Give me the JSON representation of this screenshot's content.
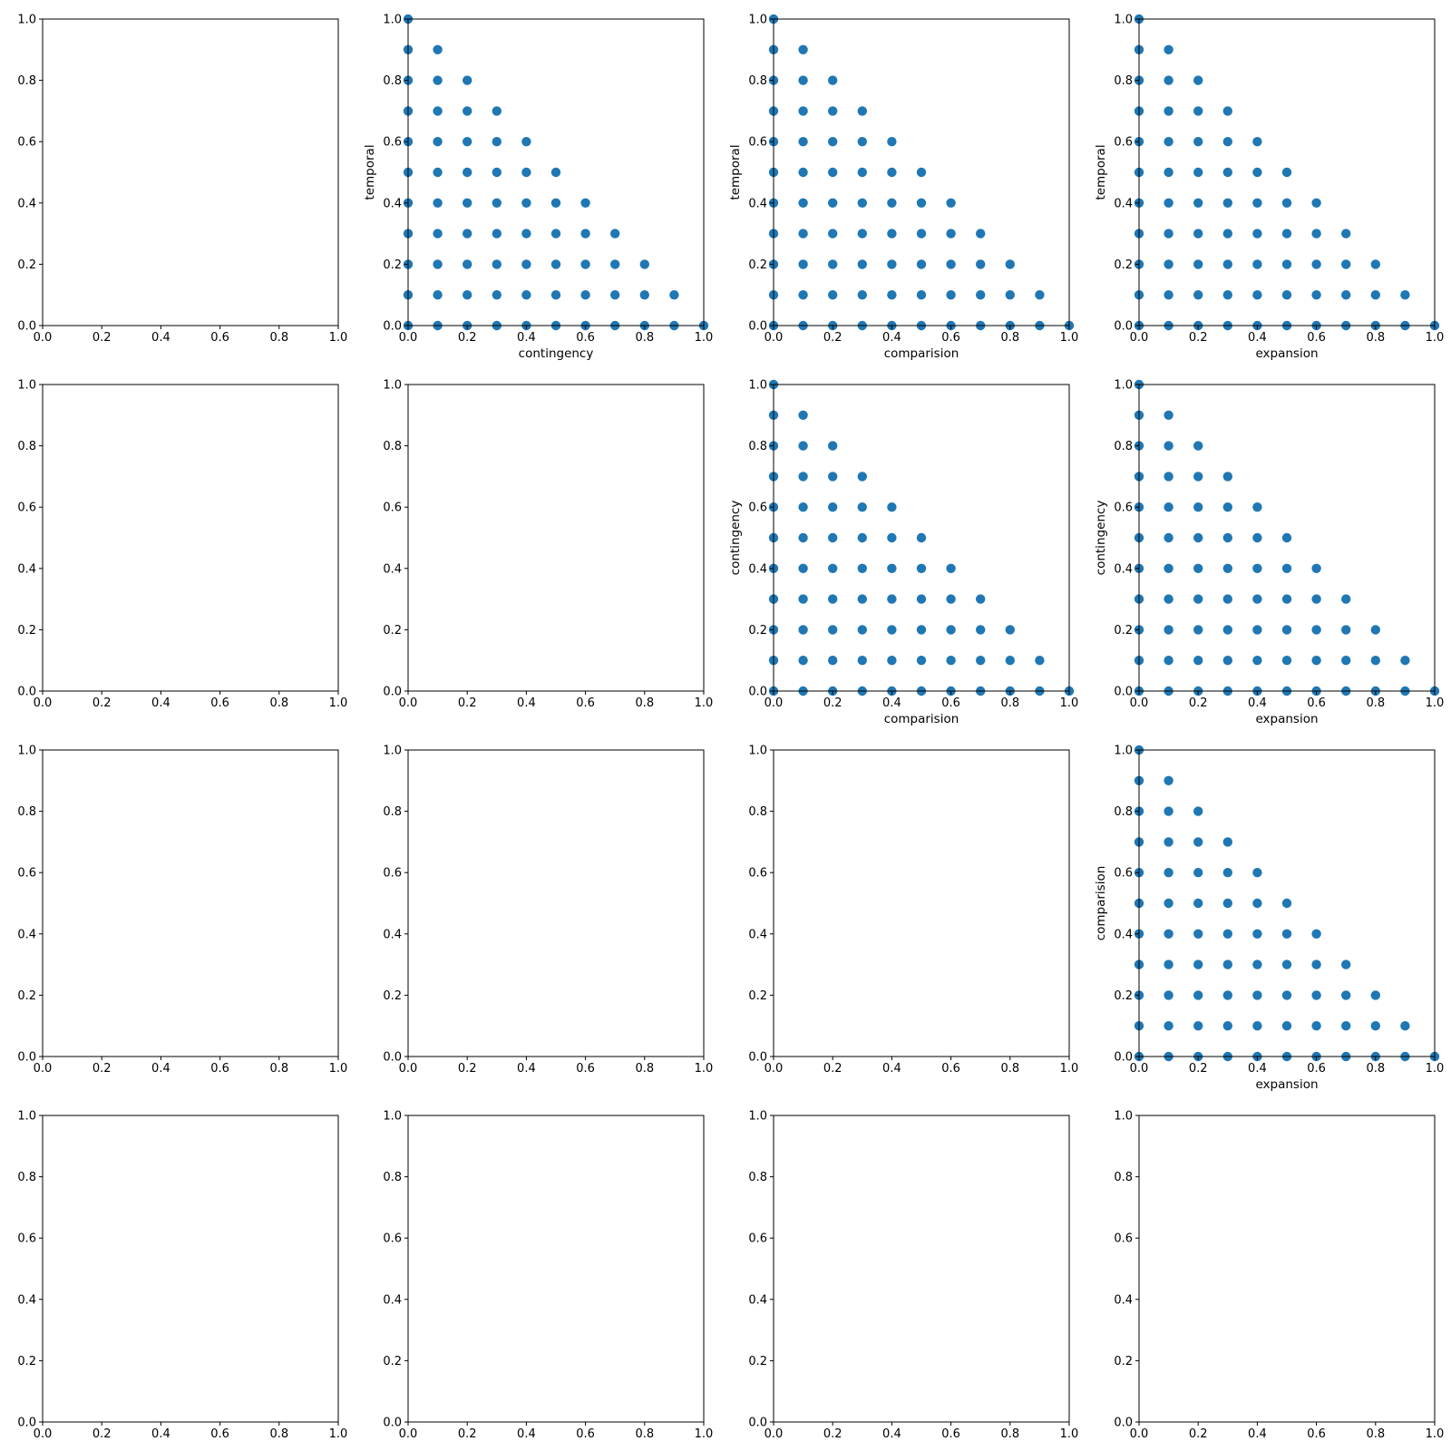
{
  "chart_data": [
    {
      "type": "scatter",
      "row": 0,
      "col": 0,
      "xlabel": "",
      "ylabel": "",
      "xlim": [
        0,
        1
      ],
      "ylim": [
        0,
        1
      ],
      "empty": true
    },
    {
      "type": "scatter",
      "row": 0,
      "col": 1,
      "xlabel": "contingency",
      "ylabel": "temporal",
      "xlim": [
        0,
        1
      ],
      "ylim": [
        0,
        1
      ],
      "points": "triangle"
    },
    {
      "type": "scatter",
      "row": 0,
      "col": 2,
      "xlabel": "comparision",
      "ylabel": "temporal",
      "xlim": [
        0,
        1
      ],
      "ylim": [
        0,
        1
      ],
      "points": "triangle"
    },
    {
      "type": "scatter",
      "row": 0,
      "col": 3,
      "xlabel": "expansion",
      "ylabel": "temporal",
      "xlim": [
        0,
        1
      ],
      "ylim": [
        0,
        1
      ],
      "points": "triangle"
    },
    {
      "type": "scatter",
      "row": 1,
      "col": 0,
      "xlabel": "",
      "ylabel": "",
      "xlim": [
        0,
        1
      ],
      "ylim": [
        0,
        1
      ],
      "empty": true
    },
    {
      "type": "scatter",
      "row": 1,
      "col": 1,
      "xlabel": "",
      "ylabel": "",
      "xlim": [
        0,
        1
      ],
      "ylim": [
        0,
        1
      ],
      "empty": true
    },
    {
      "type": "scatter",
      "row": 1,
      "col": 2,
      "xlabel": "comparision",
      "ylabel": "contingency",
      "xlim": [
        0,
        1
      ],
      "ylim": [
        0,
        1
      ],
      "points": "triangle"
    },
    {
      "type": "scatter",
      "row": 1,
      "col": 3,
      "xlabel": "expansion",
      "ylabel": "contingency",
      "xlim": [
        0,
        1
      ],
      "ylim": [
        0,
        1
      ],
      "points": "triangle"
    },
    {
      "type": "scatter",
      "row": 2,
      "col": 0,
      "xlabel": "",
      "ylabel": "",
      "xlim": [
        0,
        1
      ],
      "ylim": [
        0,
        1
      ],
      "empty": true
    },
    {
      "type": "scatter",
      "row": 2,
      "col": 1,
      "xlabel": "",
      "ylabel": "",
      "xlim": [
        0,
        1
      ],
      "ylim": [
        0,
        1
      ],
      "empty": true
    },
    {
      "type": "scatter",
      "row": 2,
      "col": 2,
      "xlabel": "",
      "ylabel": "",
      "xlim": [
        0,
        1
      ],
      "ylim": [
        0,
        1
      ],
      "empty": true
    },
    {
      "type": "scatter",
      "row": 2,
      "col": 3,
      "xlabel": "expansion",
      "ylabel": "comparision",
      "xlim": [
        0,
        1
      ],
      "ylim": [
        0,
        1
      ],
      "points": "triangle"
    },
    {
      "type": "scatter",
      "row": 3,
      "col": 0,
      "xlabel": "",
      "ylabel": "",
      "xlim": [
        0,
        1
      ],
      "ylim": [
        0,
        1
      ],
      "empty": true
    },
    {
      "type": "scatter",
      "row": 3,
      "col": 1,
      "xlabel": "",
      "ylabel": "",
      "xlim": [
        0,
        1
      ],
      "ylim": [
        0,
        1
      ],
      "empty": true
    },
    {
      "type": "scatter",
      "row": 3,
      "col": 2,
      "xlabel": "",
      "ylabel": "",
      "xlim": [
        0,
        1
      ],
      "ylim": [
        0,
        1
      ],
      "empty": true
    },
    {
      "type": "scatter",
      "row": 3,
      "col": 3,
      "xlabel": "",
      "ylabel": "",
      "xlim": [
        0,
        1
      ],
      "ylim": [
        0,
        1
      ],
      "empty": true
    }
  ],
  "ticks": [
    "0.0",
    "0.2",
    "0.4",
    "0.6",
    "0.8",
    "1.0"
  ],
  "colors": {
    "marker": "#1f77b4",
    "axes": "#000000",
    "background": "#ffffff"
  }
}
